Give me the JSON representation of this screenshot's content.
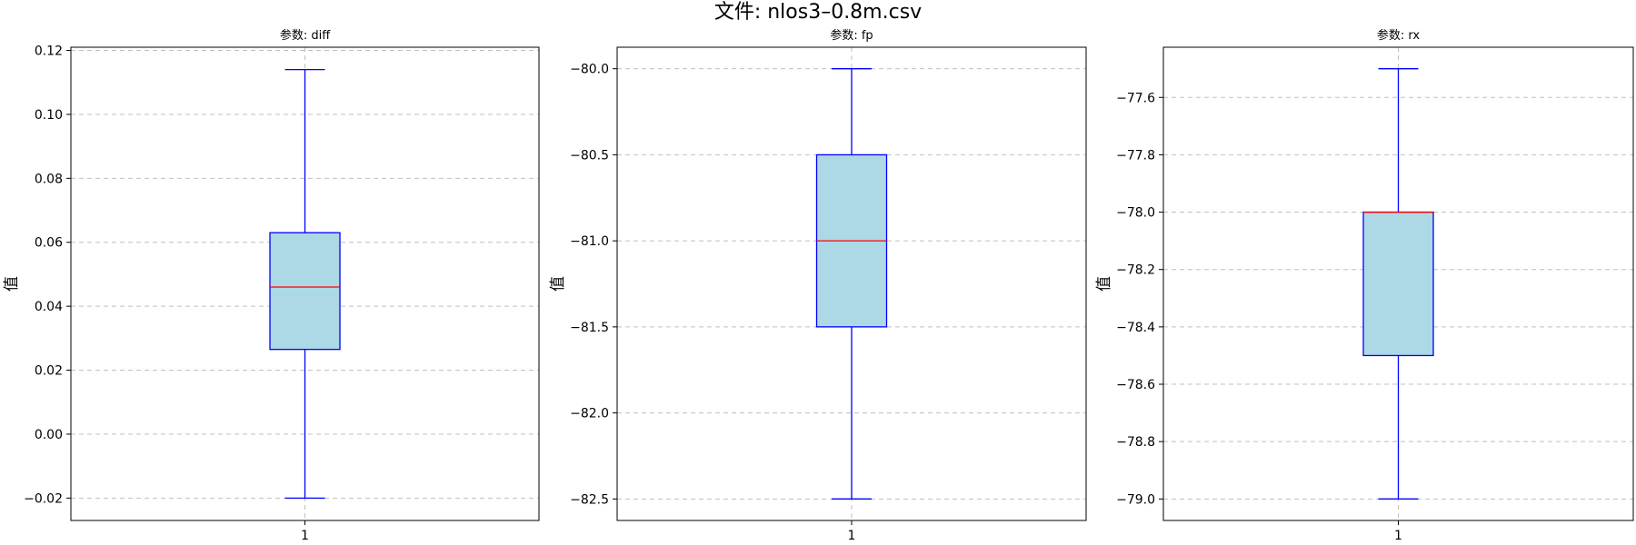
{
  "title": "文件: nlos3–0.8m.csv",
  "colors": {
    "box_fill": "#add8e6",
    "box_edge": "#0000ff",
    "median": "#ff0000",
    "grid": "#c0c0c0"
  },
  "chart_data": [
    {
      "type": "box",
      "title": "参数: diff",
      "xlabel": "",
      "ylabel": "值",
      "categories": [
        "1"
      ],
      "box": {
        "whisker_low": -0.02,
        "q1": 0.0265,
        "median": 0.046,
        "q3": 0.063,
        "whisker_high": 0.114
      },
      "ylim": [
        -0.027,
        0.121
      ],
      "yticks": [
        -0.02,
        0.0,
        0.02,
        0.04,
        0.06,
        0.08,
        0.1,
        0.12
      ],
      "ytick_labels": [
        "−0.02",
        "0.00",
        "0.02",
        "0.04",
        "0.06",
        "0.08",
        "0.10",
        "0.12"
      ],
      "grid": true
    },
    {
      "type": "box",
      "title": "参数: fp",
      "xlabel": "",
      "ylabel": "值",
      "categories": [
        "1"
      ],
      "box": {
        "whisker_low": -82.5,
        "q1": -81.5,
        "median": -81.0,
        "q3": -80.5,
        "whisker_high": -80.0
      },
      "ylim": [
        -82.625,
        -79.875
      ],
      "yticks": [
        -82.5,
        -82.0,
        -81.5,
        -81.0,
        -80.5,
        -80.0
      ],
      "ytick_labels": [
        "−82.5",
        "−82.0",
        "−81.5",
        "−81.0",
        "−80.5",
        "−80.0"
      ],
      "grid": true
    },
    {
      "type": "box",
      "title": "参数: rx",
      "xlabel": "",
      "ylabel": "值",
      "categories": [
        "1"
      ],
      "box": {
        "whisker_low": -79.0,
        "q1": -78.5,
        "median": -78.0,
        "q3": -78.0,
        "whisker_high": -77.5
      },
      "ylim": [
        -79.075,
        -77.425
      ],
      "yticks": [
        -79.0,
        -78.8,
        -78.6,
        -78.4,
        -78.2,
        -78.0,
        -77.8,
        -77.6
      ],
      "ytick_labels": [
        "−79.0",
        "−78.8",
        "−78.6",
        "−78.4",
        "−78.2",
        "−78.0",
        "−77.8",
        "−77.6"
      ],
      "grid": true
    }
  ]
}
